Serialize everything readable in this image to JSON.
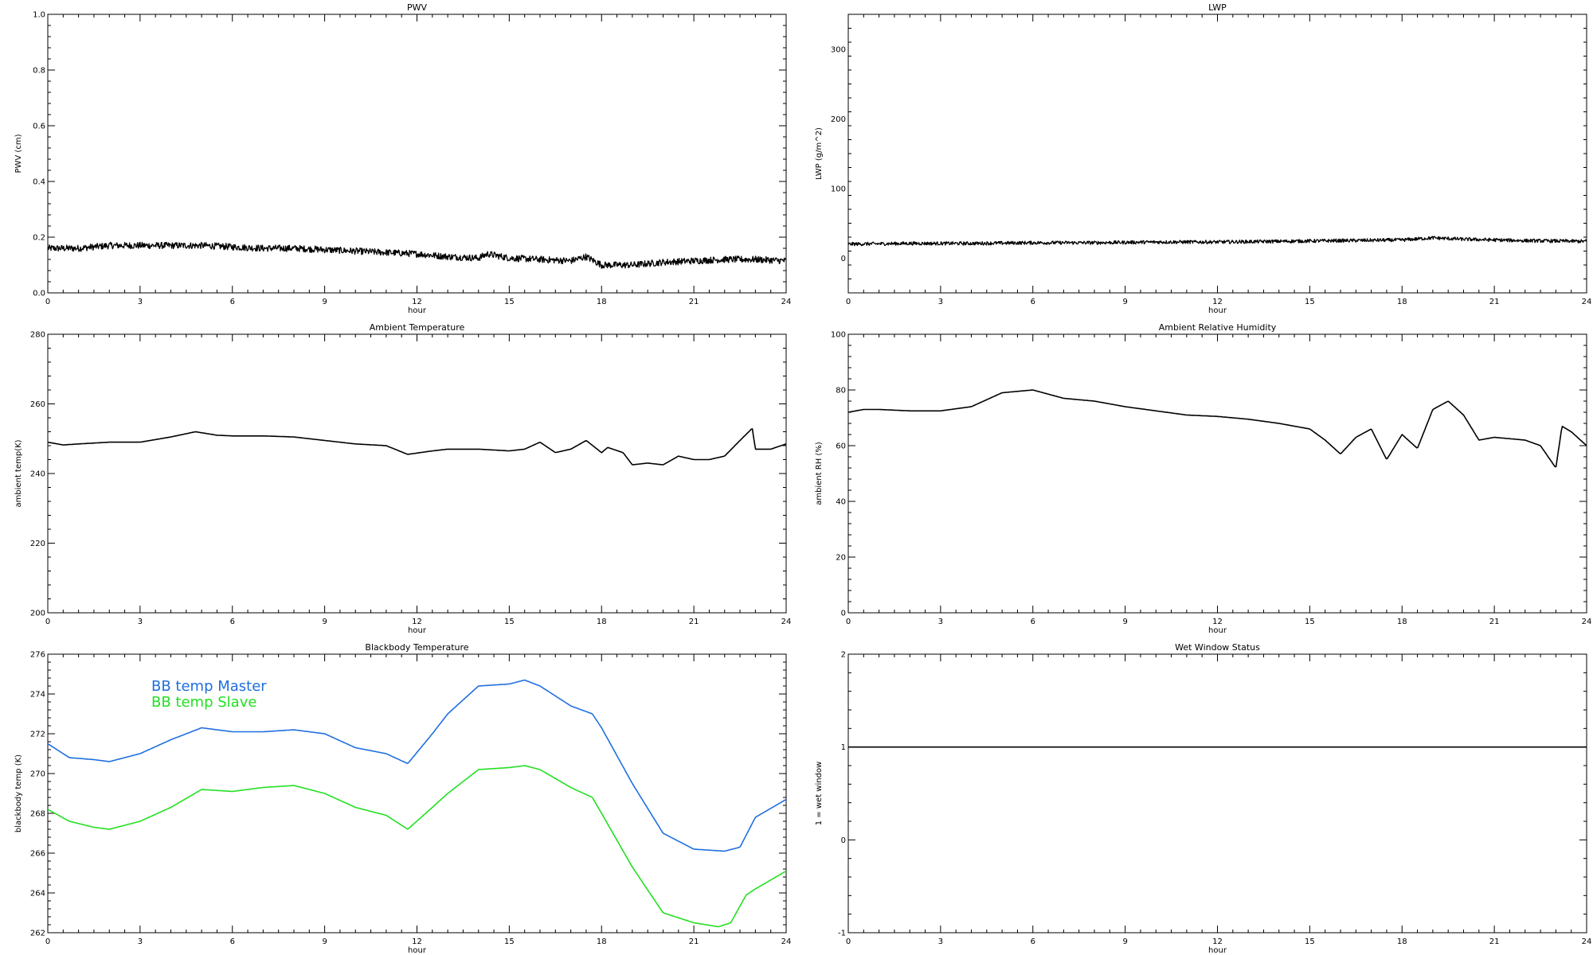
{
  "chart_data": [
    {
      "type": "line",
      "title": "PWV",
      "xlabel": "hour",
      "ylabel": "PWV (cm)",
      "xlim": [
        0,
        24
      ],
      "ylim": [
        0.0,
        1.0
      ],
      "xticks": [
        "0",
        "3",
        "6",
        "9",
        "12",
        "15",
        "18",
        "21",
        "24"
      ],
      "yticks": [
        "0.0",
        "0.2",
        "0.4",
        "0.6",
        "0.8",
        "1.0"
      ],
      "yticks_values": [
        0.0,
        0.2,
        0.4,
        0.6,
        0.8,
        1.0
      ],
      "noise": 0.012,
      "series": [
        {
          "color": "#000000",
          "x": [
            0,
            0.5,
            1,
            2,
            3,
            4,
            5,
            6,
            7,
            8,
            9,
            10,
            11,
            12,
            13,
            14,
            14.3,
            15,
            16,
            17,
            17.5,
            18,
            19,
            20,
            21,
            22,
            23,
            24
          ],
          "y": [
            0.16,
            0.16,
            0.16,
            0.17,
            0.17,
            0.17,
            0.17,
            0.165,
            0.16,
            0.16,
            0.155,
            0.15,
            0.145,
            0.14,
            0.13,
            0.125,
            0.14,
            0.125,
            0.12,
            0.115,
            0.13,
            0.1,
            0.1,
            0.11,
            0.115,
            0.12,
            0.12,
            0.115
          ]
        }
      ]
    },
    {
      "type": "line",
      "title": "LWP",
      "xlabel": "hour",
      "ylabel": "LWP (g/m^2)",
      "xlim": [
        0,
        24
      ],
      "ylim": [
        -50,
        350
      ],
      "xticks": [
        "0",
        "3",
        "6",
        "9",
        "12",
        "15",
        "18",
        "21",
        "24"
      ],
      "yticks": [
        "0",
        "100",
        "200",
        "300"
      ],
      "yticks_values": [
        0,
        100,
        200,
        300
      ],
      "noise": 2.5,
      "series": [
        {
          "color": "#000000",
          "x": [
            0,
            2,
            4,
            6,
            8,
            10,
            12,
            14,
            16,
            18,
            19,
            20,
            22,
            24
          ],
          "y": [
            20,
            21,
            21,
            22,
            22,
            23,
            23,
            24,
            25,
            26,
            29,
            27,
            25,
            24
          ]
        }
      ]
    },
    {
      "type": "line",
      "title": "Ambient Temperature",
      "xlabel": "hour",
      "ylabel": "ambient temp(K)",
      "xlim": [
        0,
        24
      ],
      "ylim": [
        200,
        280
      ],
      "xticks": [
        "0",
        "3",
        "6",
        "9",
        "12",
        "15",
        "18",
        "21",
        "24"
      ],
      "yticks": [
        "200",
        "220",
        "240",
        "260",
        "280"
      ],
      "yticks_values": [
        200,
        220,
        240,
        260,
        280
      ],
      "noise": 0,
      "series": [
        {
          "color": "#000000",
          "x": [
            0,
            0.5,
            1,
            2,
            3,
            4,
            4.8,
            5.5,
            6,
            7,
            8,
            9,
            10,
            11,
            11.7,
            12.5,
            13,
            14,
            15,
            15.5,
            16,
            16.5,
            17,
            17.5,
            18,
            18.2,
            18.7,
            19,
            19.5,
            20,
            20.5,
            21,
            21.5,
            22,
            22.5,
            22.9,
            23,
            23.5,
            24
          ],
          "y": [
            249,
            248.2,
            248.5,
            249,
            249,
            250.5,
            252,
            251,
            250.8,
            250.8,
            250.5,
            249.5,
            248.5,
            248,
            245.5,
            246.5,
            247,
            247,
            246.5,
            247,
            249,
            246,
            247,
            249.5,
            246,
            247.5,
            246,
            242.5,
            243,
            242.5,
            245,
            244,
            244,
            245,
            249.5,
            253,
            247,
            247,
            248.5
          ]
        }
      ]
    },
    {
      "type": "line",
      "title": "Ambient Relative Humidity",
      "xlabel": "hour",
      "ylabel": "ambient RH (%)",
      "xlim": [
        0,
        24
      ],
      "ylim": [
        0,
        100
      ],
      "xticks": [
        "0",
        "3",
        "6",
        "9",
        "12",
        "15",
        "18",
        "21",
        "24"
      ],
      "yticks": [
        "0",
        "20",
        "40",
        "60",
        "80",
        "100"
      ],
      "yticks_values": [
        0,
        20,
        40,
        60,
        80,
        100
      ],
      "noise": 0,
      "series": [
        {
          "color": "#000000",
          "x": [
            0,
            0.5,
            1,
            2,
            3,
            4,
            5,
            6,
            7,
            8,
            9,
            10,
            11,
            12,
            13,
            14,
            15,
            15.5,
            16,
            16.5,
            17,
            17.5,
            18,
            18.5,
            19,
            19.5,
            20,
            20.5,
            21,
            22,
            22.5,
            23,
            23.2,
            23.5,
            24
          ],
          "y": [
            72,
            73,
            73,
            72.5,
            72.5,
            74,
            79,
            80,
            77,
            76,
            74,
            72.5,
            71,
            70.5,
            69.5,
            68,
            66,
            62,
            57,
            63,
            66,
            55,
            64,
            59,
            73,
            76,
            71,
            62,
            63,
            62,
            60,
            52,
            67,
            65,
            60
          ]
        }
      ]
    },
    {
      "type": "line",
      "title": "Blackbody Temperature",
      "xlabel": "hour",
      "ylabel": "blackbody temp (K)",
      "xlim": [
        0,
        24
      ],
      "ylim": [
        262,
        276
      ],
      "xticks": [
        "0",
        "3",
        "6",
        "9",
        "12",
        "15",
        "18",
        "21",
        "24"
      ],
      "yticks": [
        "262",
        "264",
        "266",
        "268",
        "270",
        "272",
        "274",
        "276"
      ],
      "yticks_values": [
        262,
        264,
        266,
        268,
        270,
        272,
        274,
        276
      ],
      "noise": 0,
      "legend": "top-left",
      "series": [
        {
          "name": "BB temp Master",
          "color": "#1f6fe0",
          "x": [
            0,
            0.7,
            1.5,
            2,
            3,
            4,
            5,
            6,
            7,
            8,
            9,
            10,
            11,
            11.7,
            12.5,
            13,
            14,
            15,
            15.5,
            16,
            17,
            17.7,
            18,
            19,
            20,
            21,
            22,
            22.5,
            23,
            24
          ],
          "y": [
            271.5,
            270.8,
            270.7,
            270.6,
            271,
            271.7,
            272.3,
            272.1,
            272.1,
            272.2,
            272,
            271.3,
            271,
            270.5,
            272,
            273,
            274.4,
            274.5,
            274.7,
            274.4,
            273.4,
            273,
            272.3,
            269.5,
            267,
            266.2,
            266.1,
            266.3,
            267.8,
            268.7
          ]
        },
        {
          "name": "BB temp Slave",
          "color": "#22e022",
          "x": [
            0,
            0.7,
            1.5,
            2,
            3,
            4,
            5,
            6,
            7,
            8,
            9,
            10,
            11,
            11.7,
            12.5,
            13,
            14,
            15,
            15.5,
            16,
            17,
            17.7,
            18,
            19,
            20,
            21,
            21.8,
            22.2,
            22.7,
            23,
            24
          ],
          "y": [
            268.2,
            267.6,
            267.3,
            267.2,
            267.6,
            268.3,
            269.2,
            269.1,
            269.3,
            269.4,
            269,
            268.3,
            267.9,
            267.2,
            268.3,
            269,
            270.2,
            270.3,
            270.4,
            270.2,
            269.3,
            268.8,
            268,
            265.3,
            263,
            262.5,
            262.3,
            262.5,
            263.9,
            264.2,
            265.1
          ]
        }
      ]
    },
    {
      "type": "line",
      "title": "Wet Window Status",
      "xlabel": "hour",
      "ylabel": "1 = wet window",
      "xlim": [
        0,
        24
      ],
      "ylim": [
        -1,
        2
      ],
      "xticks": [
        "0",
        "3",
        "6",
        "9",
        "12",
        "15",
        "18",
        "21",
        "24"
      ],
      "yticks": [
        "-1",
        "0",
        "1",
        "2"
      ],
      "yticks_values": [
        -1,
        0,
        1,
        2
      ],
      "noise": 0,
      "series": [
        {
          "color": "#000000",
          "x": [
            0,
            24
          ],
          "y": [
            1,
            1
          ]
        }
      ]
    }
  ]
}
